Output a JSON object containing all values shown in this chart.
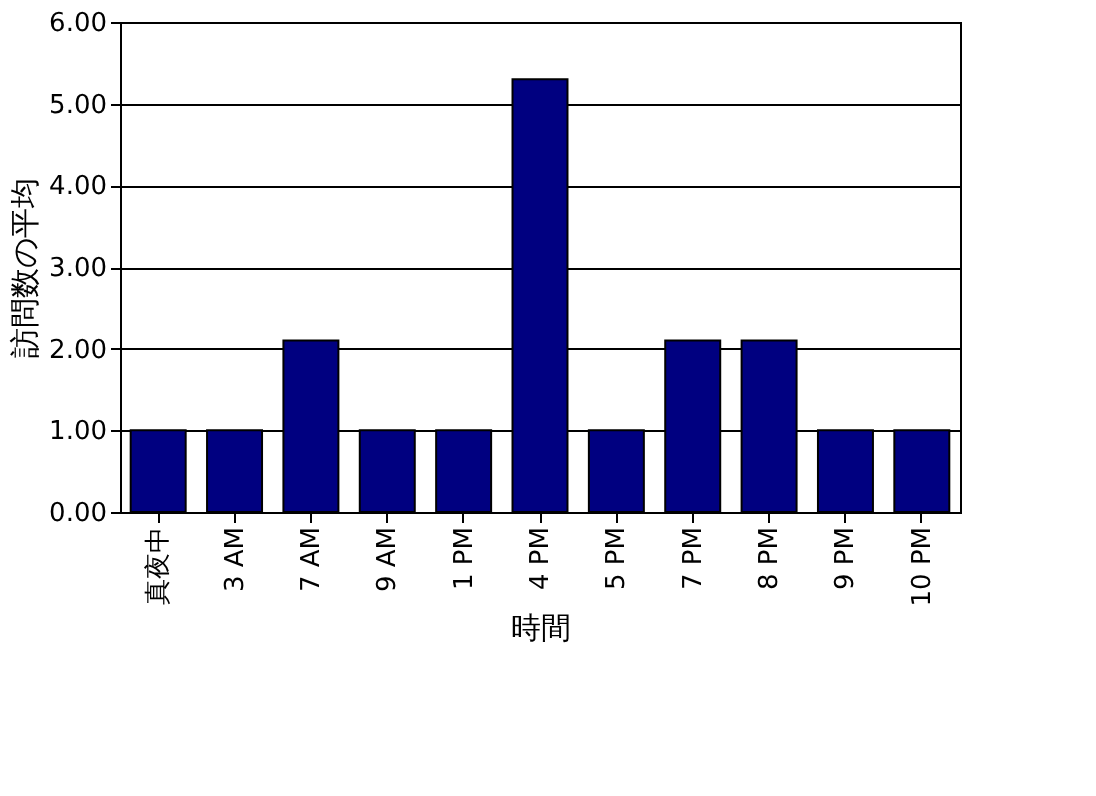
{
  "chart_data": {
    "type": "bar",
    "categories": [
      "真夜中",
      "3 AM",
      "7 AM",
      "9 AM",
      "1 PM",
      "4 PM",
      "5 PM",
      "7 PM",
      "8 PM",
      "9 PM",
      "10 PM"
    ],
    "values": [
      1.0,
      1.0,
      2.1,
      1.0,
      1.0,
      5.3,
      1.0,
      2.1,
      2.1,
      1.0,
      1.0
    ],
    "color": "#000080",
    "xlabel": "時間",
    "ylabel": "訪問数の平均",
    "ylim": [
      0,
      6
    ],
    "yticks": [
      {
        "value": 0,
        "label": "0.00"
      },
      {
        "value": 1,
        "label": "1.00"
      },
      {
        "value": 2,
        "label": "2.00"
      },
      {
        "value": 3,
        "label": "3.00"
      },
      {
        "value": 4,
        "label": "4.00"
      },
      {
        "value": 5,
        "label": "5.00"
      },
      {
        "value": 6,
        "label": "6.00"
      }
    ],
    "grid": "y"
  }
}
